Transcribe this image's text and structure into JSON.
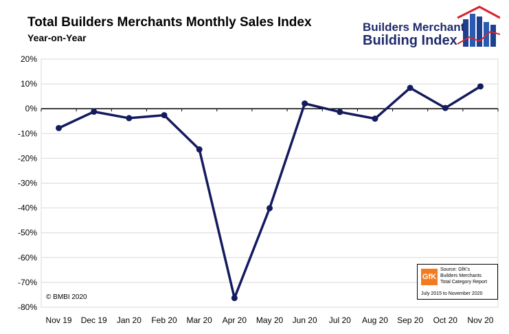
{
  "header": {
    "title": "Total Builders Merchants Monthly Sales Index",
    "subtitle": "Year-on-Year"
  },
  "logo": {
    "line1": "Builders Merchant",
    "line2": "Building Index",
    "icon": "house-bar-chart-icon"
  },
  "footer": {
    "copyright": "© BMBI 2020"
  },
  "source": {
    "brand": "GfK",
    "line1": "Source: GfK's",
    "line2": "Builders Merchants",
    "line3": "Total Category Report",
    "line4": "July 2015 to November 2020"
  },
  "colors": {
    "series": "#141a5e",
    "grid": "#d9d9d9",
    "zero_line": "#000000",
    "logo_blue": "#1f2a6b",
    "logo_red": "#d9232e",
    "gfk_orange": "#f47a20"
  },
  "chart_data": {
    "type": "line",
    "title": "Total Builders Merchants Monthly Sales Index",
    "subtitle": "Year-on-Year",
    "xlabel": "",
    "ylabel": "",
    "categories": [
      "Nov 19",
      "Dec 19",
      "Jan 20",
      "Feb 20",
      "Mar 20",
      "Apr 20",
      "May 20",
      "Jun 20",
      "Jul 20",
      "Aug 20",
      "Sep 20",
      "Oct 20",
      "Nov 20"
    ],
    "series": [
      {
        "values": [
          -7.8,
          -1.2,
          -3.8,
          -2.6,
          -16.4,
          -76.3,
          -40.1,
          2.1,
          -1.3,
          -4.0,
          8.4,
          0.3,
          9.0
        ]
      }
    ],
    "ylim": [
      -80,
      20
    ],
    "yticks": [
      20,
      10,
      0,
      -10,
      -20,
      -30,
      -40,
      -50,
      -60,
      -70,
      -80
    ],
    "ytick_labels": [
      "20%",
      "10%",
      "0%",
      "-10%",
      "-20%",
      "-30%",
      "-40%",
      "-50%",
      "-60%",
      "-70%",
      "-80%"
    ],
    "grid": true,
    "legend": "none"
  }
}
